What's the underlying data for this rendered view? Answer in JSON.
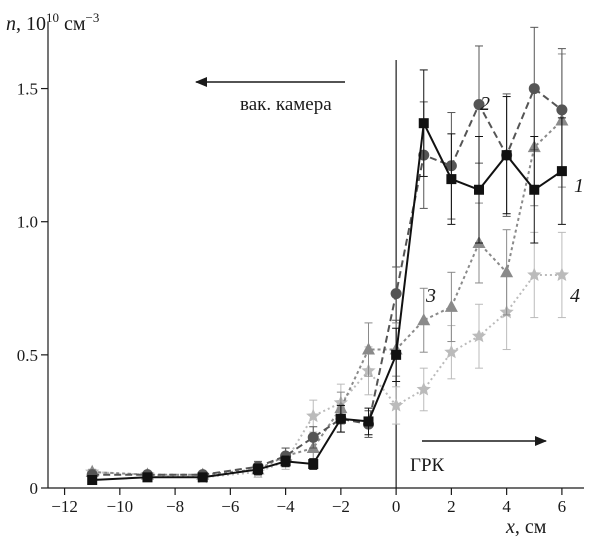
{
  "chart_data": {
    "type": "line",
    "title": "",
    "xlabel": "x, см",
    "ylabel": "n, 10¹⁰ см⁻³",
    "xlim": [
      -12.6,
      6.8
    ],
    "ylim": [
      0,
      1.75
    ],
    "xticks": [
      -12,
      -10,
      -8,
      -6,
      -4,
      -2,
      0,
      2,
      4,
      6
    ],
    "yticks": [
      0,
      0.5,
      1.0,
      1.5
    ],
    "ytick_labels": [
      "0",
      "0.5",
      "1.0",
      "1.5"
    ],
    "vline_x": 0,
    "grid": false,
    "legend": "none",
    "annotations": {
      "left_arrow_text": "вак. камера",
      "right_arrow_text": "ГРК"
    },
    "series": [
      {
        "name": "1",
        "color": "#111111",
        "dash": "solid",
        "marker": "square",
        "points": [
          {
            "x": -11,
            "y": 0.03,
            "err": 0.01
          },
          {
            "x": -9,
            "y": 0.04,
            "err": 0.01
          },
          {
            "x": -7,
            "y": 0.04,
            "err": 0.01
          },
          {
            "x": -5,
            "y": 0.07,
            "err": 0.02
          },
          {
            "x": -4,
            "y": 0.1,
            "err": 0.02
          },
          {
            "x": -3,
            "y": 0.09,
            "err": 0.02
          },
          {
            "x": -2,
            "y": 0.26,
            "err": 0.05
          },
          {
            "x": -1,
            "y": 0.25,
            "err": 0.05
          },
          {
            "x": 0,
            "y": 0.5,
            "err": 0.1
          },
          {
            "x": 1,
            "y": 1.37,
            "err": 0.2
          },
          {
            "x": 2,
            "y": 1.16,
            "err": 0.17
          },
          {
            "x": 3,
            "y": 1.12,
            "err": 0.2
          },
          {
            "x": 4,
            "y": 1.25,
            "err": 0.22
          },
          {
            "x": 5,
            "y": 1.12,
            "err": 0.2
          },
          {
            "x": 6,
            "y": 1.19,
            "err": 0.2
          }
        ]
      },
      {
        "name": "2",
        "color": "#555555",
        "dash": "dashed",
        "marker": "circle",
        "points": [
          {
            "x": -11,
            "y": 0.05,
            "err": 0.01
          },
          {
            "x": -9,
            "y": 0.05,
            "err": 0.01
          },
          {
            "x": -7,
            "y": 0.05,
            "err": 0.01
          },
          {
            "x": -5,
            "y": 0.08,
            "err": 0.02
          },
          {
            "x": -4,
            "y": 0.12,
            "err": 0.03
          },
          {
            "x": -3,
            "y": 0.19,
            "err": 0.04
          },
          {
            "x": -2,
            "y": 0.26,
            "err": 0.05
          },
          {
            "x": -1,
            "y": 0.24,
            "err": 0.05
          },
          {
            "x": 0,
            "y": 0.73,
            "err": 0.1
          },
          {
            "x": 1,
            "y": 1.25,
            "err": 0.2
          },
          {
            "x": 2,
            "y": 1.21,
            "err": 0.2
          },
          {
            "x": 3,
            "y": 1.44,
            "err": 0.22
          },
          {
            "x": 4,
            "y": 1.25,
            "err": 0.23
          },
          {
            "x": 5,
            "y": 1.5,
            "err": 0.23
          },
          {
            "x": 6,
            "y": 1.42,
            "err": 0.23
          }
        ]
      },
      {
        "name": "3",
        "color": "#8a8a8a",
        "dash": "dotted",
        "marker": "triangle",
        "points": [
          {
            "x": -11,
            "y": 0.06,
            "err": 0.01
          },
          {
            "x": -9,
            "y": 0.05,
            "err": 0.01
          },
          {
            "x": -7,
            "y": 0.05,
            "err": 0.01
          },
          {
            "x": -5,
            "y": 0.07,
            "err": 0.02
          },
          {
            "x": -4,
            "y": 0.12,
            "err": 0.03
          },
          {
            "x": -3,
            "y": 0.15,
            "err": 0.04
          },
          {
            "x": -2,
            "y": 0.3,
            "err": 0.06
          },
          {
            "x": -1,
            "y": 0.52,
            "err": 0.1
          },
          {
            "x": 0,
            "y": 0.52,
            "err": 0.1
          },
          {
            "x": 1,
            "y": 0.63,
            "err": 0.12
          },
          {
            "x": 2,
            "y": 0.68,
            "err": 0.13
          },
          {
            "x": 3,
            "y": 0.92,
            "err": 0.15
          },
          {
            "x": 4,
            "y": 0.81,
            "err": 0.16
          },
          {
            "x": 5,
            "y": 1.28,
            "err": 0.22
          },
          {
            "x": 6,
            "y": 1.38,
            "err": 0.25
          }
        ]
      },
      {
        "name": "4",
        "color": "#bbbbbb",
        "dash": "dotted-fine",
        "marker": "star",
        "points": [
          {
            "x": -11,
            "y": 0.06,
            "err": 0.01
          },
          {
            "x": -9,
            "y": 0.05,
            "err": 0.01
          },
          {
            "x": -7,
            "y": 0.04,
            "err": 0.01
          },
          {
            "x": -5,
            "y": 0.06,
            "err": 0.02
          },
          {
            "x": -4,
            "y": 0.1,
            "err": 0.03
          },
          {
            "x": -3,
            "y": 0.27,
            "err": 0.06
          },
          {
            "x": -2,
            "y": 0.32,
            "err": 0.07
          },
          {
            "x": -1,
            "y": 0.44,
            "err": 0.09
          },
          {
            "x": 0,
            "y": 0.31,
            "err": 0.07
          },
          {
            "x": 1,
            "y": 0.37,
            "err": 0.08
          },
          {
            "x": 2,
            "y": 0.51,
            "err": 0.1
          },
          {
            "x": 3,
            "y": 0.57,
            "err": 0.12
          },
          {
            "x": 4,
            "y": 0.66,
            "err": 0.14
          },
          {
            "x": 5,
            "y": 0.8,
            "err": 0.16
          },
          {
            "x": 6,
            "y": 0.8,
            "err": 0.16
          }
        ]
      }
    ]
  }
}
